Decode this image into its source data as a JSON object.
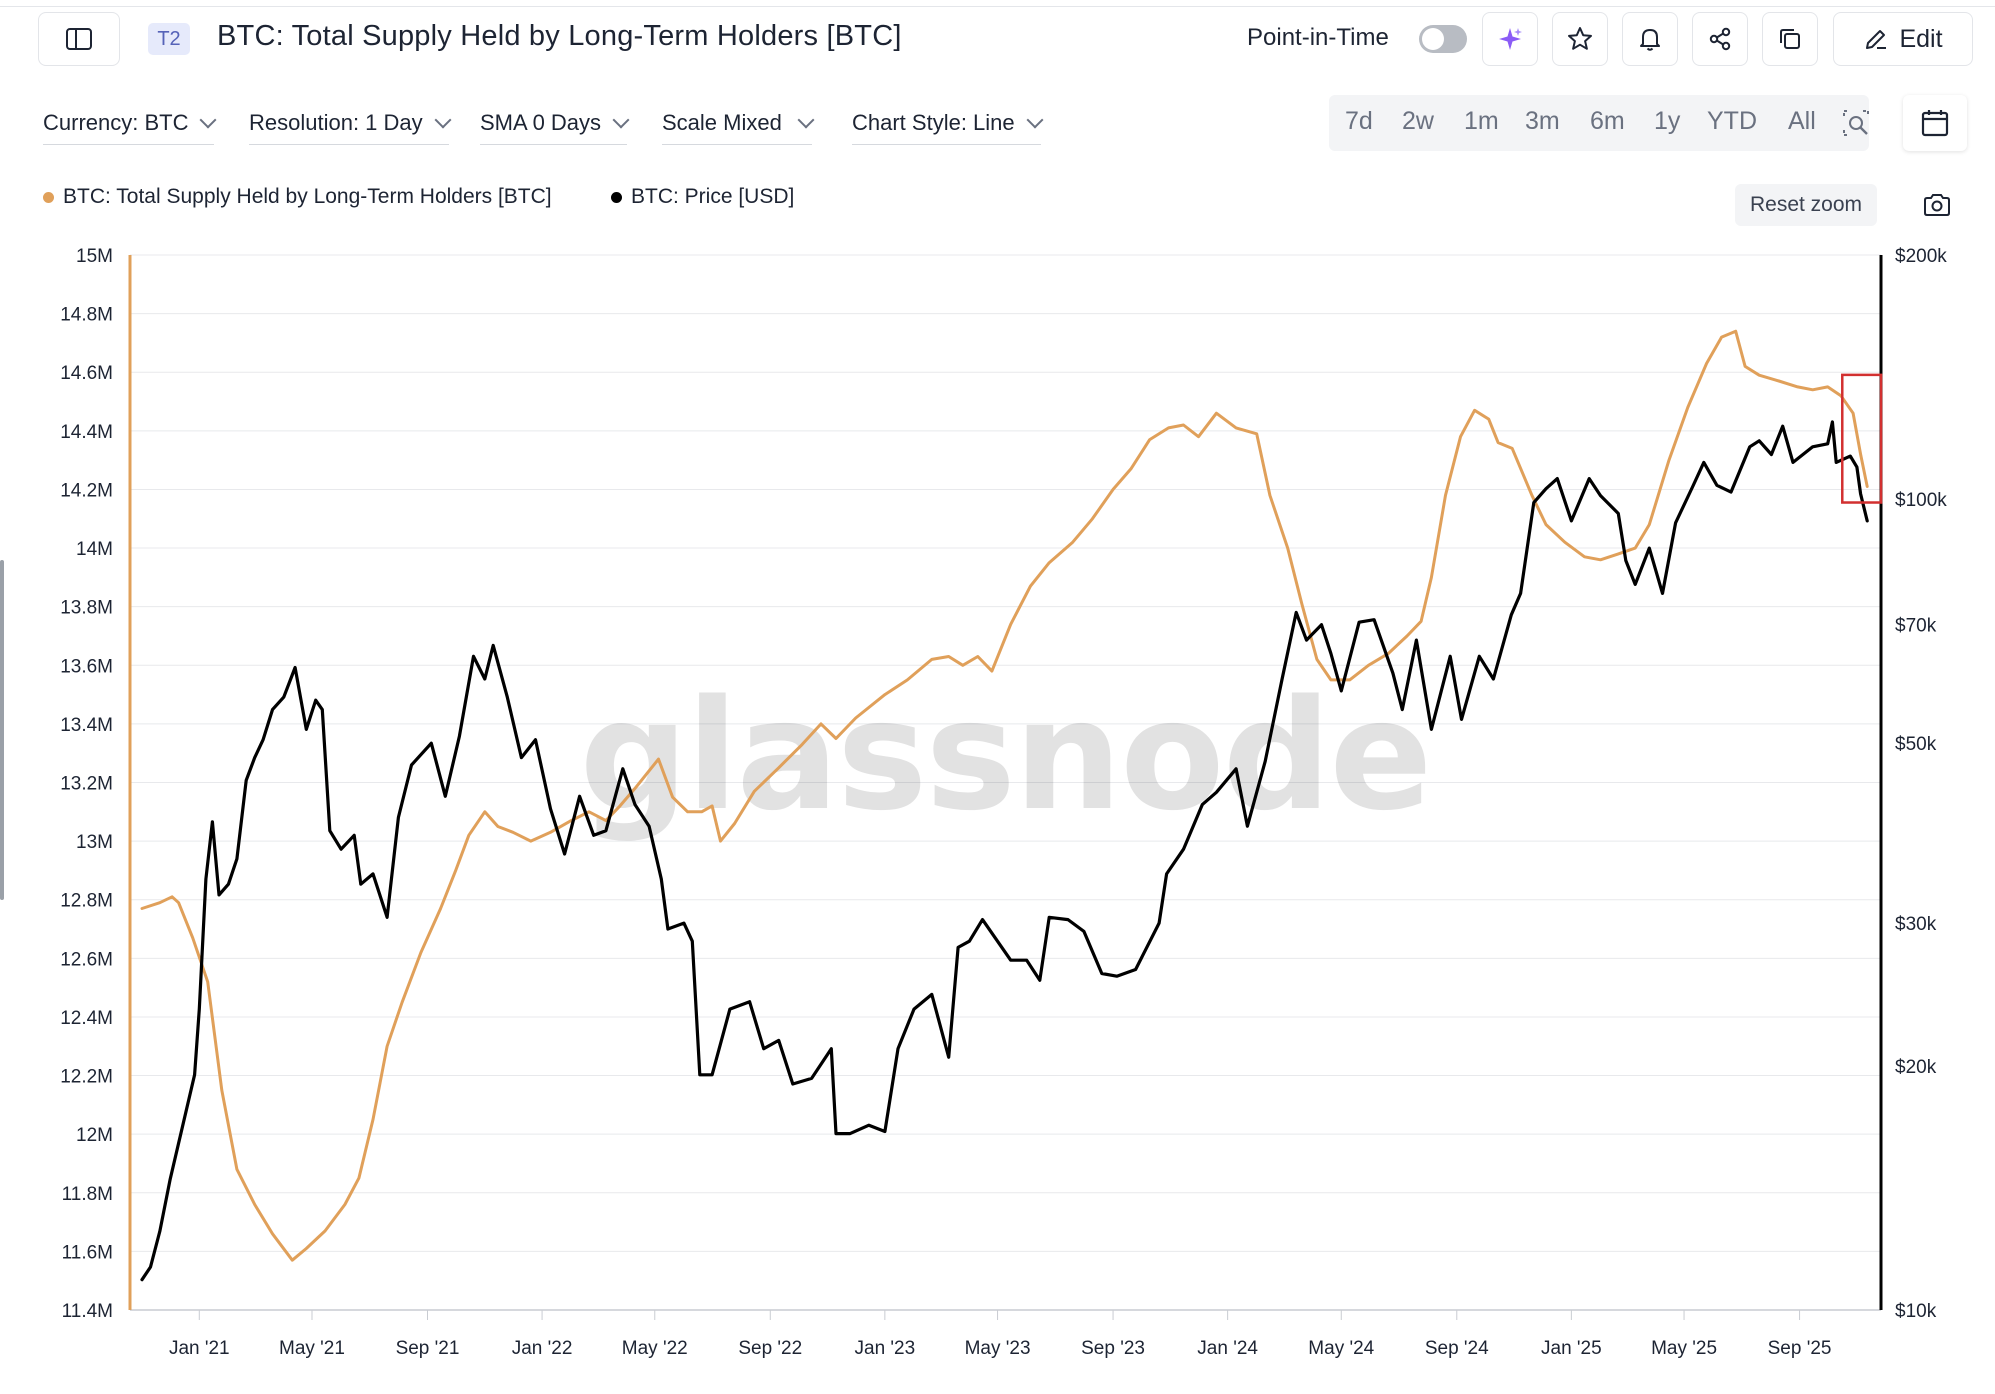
{
  "header": {
    "tag": "T2",
    "title": "BTC: Total Supply Held by Long-Term Holders [BTC]",
    "point_in_time_label": "Point-in-Time",
    "point_in_time_on": false,
    "edit_label": "Edit",
    "icons": [
      "sidebar-toggle-icon",
      "sparkle-icon",
      "star-icon",
      "bell-icon",
      "share-icon",
      "copy-icon",
      "pencil-icon"
    ]
  },
  "controls": {
    "currency": "Currency: BTC",
    "resolution": "Resolution: 1 Day",
    "sma": "SMA 0 Days",
    "scale": "Scale Mixed",
    "chart_style": "Chart Style: Line",
    "ranges": [
      "7d",
      "2w",
      "1m",
      "3m",
      "6m",
      "1y",
      "YTD",
      "All"
    ]
  },
  "legend": [
    {
      "label": "BTC: Total Supply Held by Long-Term Holders [BTC]",
      "color": "#e0a05a"
    },
    {
      "label": "BTC: Price [USD]",
      "color": "#000000"
    }
  ],
  "reset_zoom_label": "Reset zoom",
  "watermark": "glassnode",
  "chart_data": {
    "type": "line",
    "x_ticks": [
      "Jan '21",
      "May '21",
      "Sep '21",
      "Jan '22",
      "May '22",
      "Sep '22",
      "Jan '23",
      "May '23",
      "Sep '23",
      "Jan '24",
      "May '24",
      "Sep '24",
      "Jan '25",
      "May '25",
      "Sep '25"
    ],
    "y_left": {
      "scale": "linear",
      "ylim": [
        11.4,
        15.0
      ],
      "unit": "M",
      "ticks": [
        "15M",
        "14.8M",
        "14.6M",
        "14.4M",
        "14.2M",
        "14M",
        "13.8M",
        "13.6M",
        "13.4M",
        "13.2M",
        "13M",
        "12.8M",
        "12.6M",
        "12.4M",
        "12.2M",
        "12M",
        "11.8M",
        "11.6M",
        "11.4M"
      ]
    },
    "y_right": {
      "scale": "log",
      "ylim": [
        10000,
        200000
      ],
      "ticks": [
        {
          "label": "$200k",
          "v": 200000
        },
        {
          "label": "$100k",
          "v": 100000
        },
        {
          "label": "$70k",
          "v": 70000
        },
        {
          "label": "$50k",
          "v": 50000
        },
        {
          "label": "$30k",
          "v": 30000
        },
        {
          "label": "$20k",
          "v": 20000
        },
        {
          "label": "$10k",
          "v": 10000
        }
      ]
    },
    "grid": true,
    "series": [
      {
        "name": "BTC: Total Supply Held by Long-Term Holders [BTC]",
        "axis": "left",
        "color": "#e0a05a",
        "points": [
          [
            "2020-11-01",
            12.77
          ],
          [
            "2020-11-20",
            12.79
          ],
          [
            "2020-12-03",
            12.81
          ],
          [
            "2020-12-10",
            12.79
          ],
          [
            "2020-12-25",
            12.67
          ],
          [
            "2021-01-10",
            12.52
          ],
          [
            "2021-01-25",
            12.15
          ],
          [
            "2021-02-10",
            11.88
          ],
          [
            "2021-03-01",
            11.76
          ],
          [
            "2021-03-20",
            11.66
          ],
          [
            "2021-04-10",
            11.57
          ],
          [
            "2021-04-25",
            11.61
          ],
          [
            "2021-05-15",
            11.67
          ],
          [
            "2021-06-05",
            11.76
          ],
          [
            "2021-06-20",
            11.85
          ],
          [
            "2021-07-05",
            12.05
          ],
          [
            "2021-07-20",
            12.3
          ],
          [
            "2021-08-05",
            12.45
          ],
          [
            "2021-08-25",
            12.62
          ],
          [
            "2021-09-15",
            12.77
          ],
          [
            "2021-10-01",
            12.9
          ],
          [
            "2021-10-15",
            13.02
          ],
          [
            "2021-11-01",
            13.1
          ],
          [
            "2021-11-15",
            13.05
          ],
          [
            "2021-12-01",
            13.03
          ],
          [
            "2021-12-20",
            13.0
          ],
          [
            "2022-01-10",
            13.03
          ],
          [
            "2022-02-01",
            13.07
          ],
          [
            "2022-02-20",
            13.1
          ],
          [
            "2022-03-10",
            13.07
          ],
          [
            "2022-03-25",
            13.12
          ],
          [
            "2022-04-10",
            13.18
          ],
          [
            "2022-04-25",
            13.24
          ],
          [
            "2022-05-05",
            13.28
          ],
          [
            "2022-05-20",
            13.15
          ],
          [
            "2022-06-05",
            13.1
          ],
          [
            "2022-06-20",
            13.1
          ],
          [
            "2022-07-01",
            13.12
          ],
          [
            "2022-07-10",
            13.0
          ],
          [
            "2022-07-25",
            13.06
          ],
          [
            "2022-08-15",
            13.17
          ],
          [
            "2022-09-10",
            13.25
          ],
          [
            "2022-10-05",
            13.33
          ],
          [
            "2022-10-25",
            13.4
          ],
          [
            "2022-11-10",
            13.35
          ],
          [
            "2022-12-01",
            13.42
          ],
          [
            "2023-01-01",
            13.5
          ],
          [
            "2023-01-25",
            13.55
          ],
          [
            "2023-02-20",
            13.62
          ],
          [
            "2023-03-10",
            13.63
          ],
          [
            "2023-03-25",
            13.6
          ],
          [
            "2023-04-10",
            13.63
          ],
          [
            "2023-04-25",
            13.58
          ],
          [
            "2023-05-15",
            13.74
          ],
          [
            "2023-06-05",
            13.87
          ],
          [
            "2023-06-25",
            13.95
          ],
          [
            "2023-07-20",
            14.02
          ],
          [
            "2023-08-10",
            14.1
          ],
          [
            "2023-09-01",
            14.2
          ],
          [
            "2023-09-20",
            14.27
          ],
          [
            "2023-10-10",
            14.37
          ],
          [
            "2023-10-30",
            14.41
          ],
          [
            "2023-11-15",
            14.42
          ],
          [
            "2023-12-01",
            14.38
          ],
          [
            "2023-12-20",
            14.46
          ],
          [
            "2024-01-10",
            14.41
          ],
          [
            "2024-02-01",
            14.39
          ],
          [
            "2024-02-15",
            14.18
          ],
          [
            "2024-03-05",
            14.0
          ],
          [
            "2024-03-20",
            13.81
          ],
          [
            "2024-04-05",
            13.62
          ],
          [
            "2024-04-20",
            13.55
          ],
          [
            "2024-05-10",
            13.55
          ],
          [
            "2024-05-30",
            13.6
          ],
          [
            "2024-06-20",
            13.64
          ],
          [
            "2024-07-10",
            13.7
          ],
          [
            "2024-07-25",
            13.75
          ],
          [
            "2024-08-05",
            13.9
          ],
          [
            "2024-08-20",
            14.18
          ],
          [
            "2024-09-05",
            14.38
          ],
          [
            "2024-09-20",
            14.47
          ],
          [
            "2024-10-05",
            14.44
          ],
          [
            "2024-10-15",
            14.36
          ],
          [
            "2024-10-30",
            14.34
          ],
          [
            "2024-11-20",
            14.18
          ],
          [
            "2024-12-05",
            14.08
          ],
          [
            "2024-12-25",
            14.02
          ],
          [
            "2025-01-15",
            13.97
          ],
          [
            "2025-02-01",
            13.96
          ],
          [
            "2025-02-20",
            13.98
          ],
          [
            "2025-03-10",
            14.0
          ],
          [
            "2025-03-25",
            14.08
          ],
          [
            "2025-04-15",
            14.3
          ],
          [
            "2025-05-05",
            14.48
          ],
          [
            "2025-05-25",
            14.63
          ],
          [
            "2025-06-10",
            14.72
          ],
          [
            "2025-06-25",
            14.74
          ],
          [
            "2025-07-05",
            14.62
          ],
          [
            "2025-07-20",
            14.59
          ],
          [
            "2025-08-10",
            14.57
          ],
          [
            "2025-08-30",
            14.55
          ],
          [
            "2025-09-15",
            14.54
          ],
          [
            "2025-10-01",
            14.55
          ],
          [
            "2025-10-15",
            14.52
          ],
          [
            "2025-10-28",
            14.46
          ],
          [
            "2025-11-05",
            14.32
          ],
          [
            "2025-11-12",
            14.21
          ]
        ]
      },
      {
        "name": "BTC: Price [USD]",
        "axis": "right",
        "color": "#000000",
        "points": [
          [
            "2020-11-01",
            10900
          ],
          [
            "2020-11-10",
            11300
          ],
          [
            "2020-11-20",
            12500
          ],
          [
            "2020-12-01",
            14500
          ],
          [
            "2020-12-15",
            17000
          ],
          [
            "2020-12-27",
            19500
          ],
          [
            "2021-01-01",
            23500
          ],
          [
            "2021-01-08",
            34000
          ],
          [
            "2021-01-15",
            40000
          ],
          [
            "2021-01-22",
            32500
          ],
          [
            "2021-02-01",
            33500
          ],
          [
            "2021-02-10",
            36000
          ],
          [
            "2021-02-20",
            45000
          ],
          [
            "2021-03-01",
            48000
          ],
          [
            "2021-03-10",
            50500
          ],
          [
            "2021-03-20",
            55000
          ],
          [
            "2021-04-01",
            57000
          ],
          [
            "2021-04-13",
            62000
          ],
          [
            "2021-04-25",
            52000
          ],
          [
            "2021-05-05",
            56500
          ],
          [
            "2021-05-12",
            55000
          ],
          [
            "2021-05-20",
            39000
          ],
          [
            "2021-06-01",
            37000
          ],
          [
            "2021-06-15",
            38500
          ],
          [
            "2021-06-22",
            33500
          ],
          [
            "2021-07-05",
            34500
          ],
          [
            "2021-07-20",
            30500
          ],
          [
            "2021-08-01",
            40500
          ],
          [
            "2021-08-15",
            47000
          ],
          [
            "2021-09-05",
            50000
          ],
          [
            "2021-09-20",
            43000
          ],
          [
            "2021-10-05",
            51000
          ],
          [
            "2021-10-20",
            64000
          ],
          [
            "2021-11-01",
            60000
          ],
          [
            "2021-11-10",
            66000
          ],
          [
            "2021-11-25",
            57000
          ],
          [
            "2021-12-10",
            48000
          ],
          [
            "2021-12-25",
            50500
          ],
          [
            "2022-01-10",
            41500
          ],
          [
            "2022-01-25",
            36500
          ],
          [
            "2022-02-10",
            43000
          ],
          [
            "2022-02-25",
            38500
          ],
          [
            "2022-03-10",
            39000
          ],
          [
            "2022-03-28",
            46500
          ],
          [
            "2022-04-10",
            42000
          ],
          [
            "2022-04-25",
            39500
          ],
          [
            "2022-05-08",
            34000
          ],
          [
            "2022-05-15",
            29500
          ],
          [
            "2022-06-01",
            30000
          ],
          [
            "2022-06-10",
            28500
          ],
          [
            "2022-06-18",
            19500
          ],
          [
            "2022-07-01",
            19500
          ],
          [
            "2022-07-20",
            23500
          ],
          [
            "2022-08-10",
            24000
          ],
          [
            "2022-08-25",
            21000
          ],
          [
            "2022-09-10",
            21500
          ],
          [
            "2022-09-25",
            19000
          ],
          [
            "2022-10-15",
            19300
          ],
          [
            "2022-11-05",
            21000
          ],
          [
            "2022-11-10",
            16500
          ],
          [
            "2022-11-25",
            16500
          ],
          [
            "2022-12-15",
            16900
          ],
          [
            "2023-01-01",
            16600
          ],
          [
            "2023-01-15",
            21000
          ],
          [
            "2023-02-01",
            23500
          ],
          [
            "2023-02-20",
            24500
          ],
          [
            "2023-03-10",
            20500
          ],
          [
            "2023-03-20",
            28000
          ],
          [
            "2023-04-01",
            28500
          ],
          [
            "2023-04-15",
            30300
          ],
          [
            "2023-05-01",
            28500
          ],
          [
            "2023-05-15",
            27000
          ],
          [
            "2023-06-01",
            27000
          ],
          [
            "2023-06-15",
            25500
          ],
          [
            "2023-06-25",
            30500
          ],
          [
            "2023-07-15",
            30300
          ],
          [
            "2023-08-01",
            29300
          ],
          [
            "2023-08-20",
            26000
          ],
          [
            "2023-09-05",
            25800
          ],
          [
            "2023-09-25",
            26300
          ],
          [
            "2023-10-20",
            30000
          ],
          [
            "2023-10-28",
            34500
          ],
          [
            "2023-11-15",
            37000
          ],
          [
            "2023-12-05",
            42000
          ],
          [
            "2023-12-20",
            43500
          ],
          [
            "2024-01-10",
            46500
          ],
          [
            "2024-01-22",
            39500
          ],
          [
            "2024-02-10",
            47500
          ],
          [
            "2024-02-28",
            60000
          ],
          [
            "2024-03-14",
            72500
          ],
          [
            "2024-03-25",
            67000
          ],
          [
            "2024-04-10",
            70000
          ],
          [
            "2024-04-20",
            64500
          ],
          [
            "2024-05-01",
            58000
          ],
          [
            "2024-05-20",
            70500
          ],
          [
            "2024-06-05",
            71000
          ],
          [
            "2024-06-25",
            61000
          ],
          [
            "2024-07-05",
            55000
          ],
          [
            "2024-07-20",
            67000
          ],
          [
            "2024-08-05",
            52000
          ],
          [
            "2024-08-25",
            64000
          ],
          [
            "2024-09-06",
            53500
          ],
          [
            "2024-09-25",
            64000
          ],
          [
            "2024-10-10",
            60000
          ],
          [
            "2024-10-29",
            72000
          ],
          [
            "2024-11-08",
            76500
          ],
          [
            "2024-11-22",
            99000
          ],
          [
            "2024-12-05",
            103000
          ],
          [
            "2024-12-17",
            106000
          ],
          [
            "2025-01-01",
            94000
          ],
          [
            "2025-01-20",
            106000
          ],
          [
            "2025-02-01",
            101000
          ],
          [
            "2025-02-20",
            96000
          ],
          [
            "2025-02-28",
            84000
          ],
          [
            "2025-03-10",
            78500
          ],
          [
            "2025-03-25",
            87000
          ],
          [
            "2025-04-08",
            76500
          ],
          [
            "2025-04-22",
            93500
          ],
          [
            "2025-05-10",
            103500
          ],
          [
            "2025-05-22",
            111000
          ],
          [
            "2025-06-05",
            104000
          ],
          [
            "2025-06-20",
            102000
          ],
          [
            "2025-07-10",
            116000
          ],
          [
            "2025-07-20",
            118000
          ],
          [
            "2025-08-02",
            113500
          ],
          [
            "2025-08-14",
            123000
          ],
          [
            "2025-08-25",
            111000
          ],
          [
            "2025-09-15",
            116000
          ],
          [
            "2025-10-01",
            117000
          ],
          [
            "2025-10-06",
            124500
          ],
          [
            "2025-10-10",
            111000
          ],
          [
            "2025-10-25",
            113000
          ],
          [
            "2025-11-01",
            109500
          ],
          [
            "2025-11-05",
            101500
          ],
          [
            "2025-11-12",
            94000
          ]
        ]
      }
    ],
    "highlight": {
      "from": "2025-10-25",
      "to": "2025-11-14",
      "color": "#d23030"
    }
  }
}
